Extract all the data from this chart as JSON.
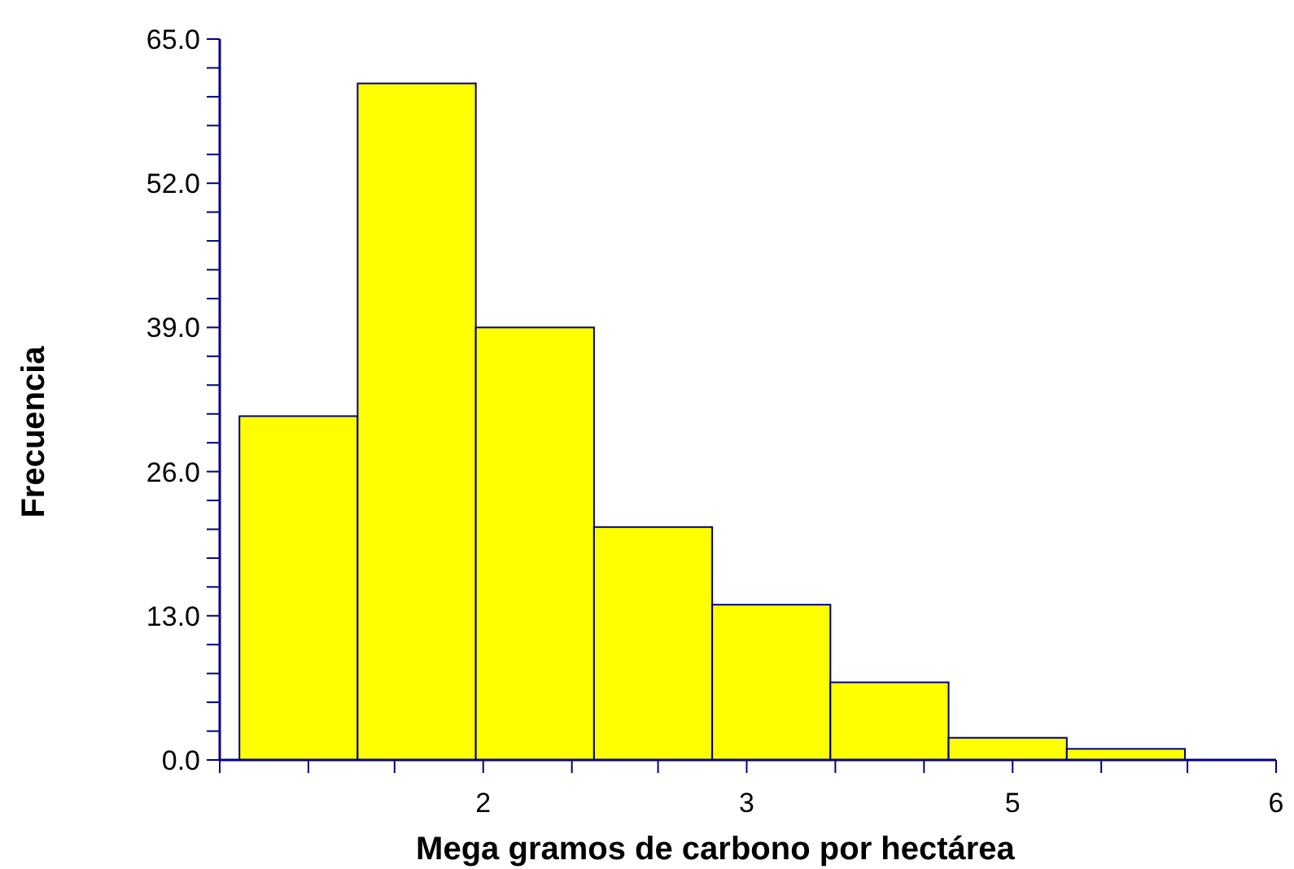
{
  "chart_data": {
    "type": "histogram",
    "xlabel": "Mega gramos de carbono por hectárea",
    "ylabel": "Frecuencia",
    "bins": [
      1.36,
      1.84,
      2.32,
      2.8,
      3.28,
      3.76,
      4.24,
      4.72,
      5.2
    ],
    "values": [
      31,
      61,
      39,
      21,
      14,
      7,
      2,
      1
    ],
    "color": "#ffff00",
    "xlim": [
      1.28,
      5.57
    ],
    "xticks": [
      {
        "value": 1.28,
        "label": null
      },
      {
        "value": 1.64,
        "label": null
      },
      {
        "value": 1.99,
        "label": null
      },
      {
        "value": 2.35,
        "label": "2"
      },
      {
        "value": 2.71,
        "label": null
      },
      {
        "value": 3.06,
        "label": null
      },
      {
        "value": 3.42,
        "label": "3"
      },
      {
        "value": 3.78,
        "label": null
      },
      {
        "value": 4.14,
        "label": null
      },
      {
        "value": 4.5,
        "label": "5"
      },
      {
        "value": 4.86,
        "label": null
      },
      {
        "value": 5.21,
        "label": null
      },
      {
        "value": 5.57,
        "label": "6"
      }
    ],
    "ylim": [
      0,
      65
    ],
    "yticks": [
      {
        "value": 0,
        "label": "0.0"
      },
      {
        "value": 2.6,
        "label": null
      },
      {
        "value": 5.2,
        "label": null
      },
      {
        "value": 7.8,
        "label": null
      },
      {
        "value": 10.4,
        "label": null
      },
      {
        "value": 13,
        "label": "13.0"
      },
      {
        "value": 15.6,
        "label": null
      },
      {
        "value": 18.2,
        "label": null
      },
      {
        "value": 20.8,
        "label": null
      },
      {
        "value": 23.4,
        "label": null
      },
      {
        "value": 26,
        "label": "26.0"
      },
      {
        "value": 28.6,
        "label": null
      },
      {
        "value": 31.2,
        "label": null
      },
      {
        "value": 33.8,
        "label": null
      },
      {
        "value": 36.4,
        "label": null
      },
      {
        "value": 39,
        "label": "39.0"
      },
      {
        "value": 41.6,
        "label": null
      },
      {
        "value": 44.2,
        "label": null
      },
      {
        "value": 46.8,
        "label": null
      },
      {
        "value": 49.4,
        "label": null
      },
      {
        "value": 52,
        "label": "52.0"
      },
      {
        "value": 54.6,
        "label": null
      },
      {
        "value": 57.2,
        "label": null
      },
      {
        "value": 59.8,
        "label": null
      },
      {
        "value": 62.4,
        "label": null
      },
      {
        "value": 65,
        "label": "65.0"
      }
    ],
    "grid": false
  }
}
